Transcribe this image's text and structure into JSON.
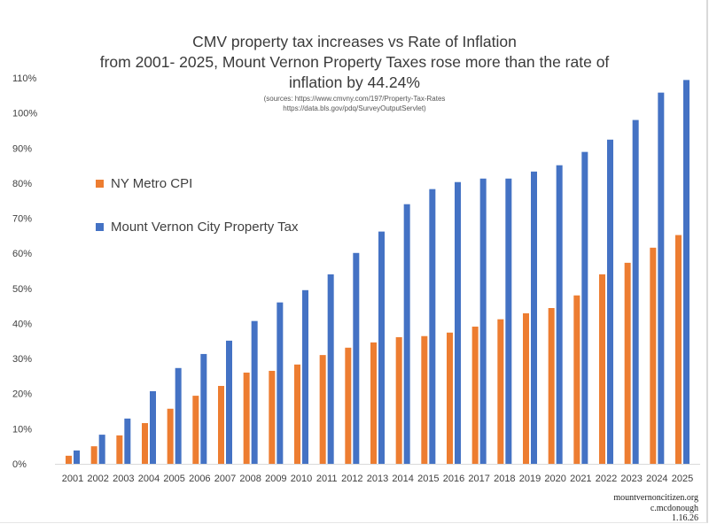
{
  "chart_data": {
    "type": "bar",
    "title": [
      "CMV property tax increases vs Rate of Inflation",
      "from 2001- 2025, Mount Vernon Property Taxes rose more than the rate of",
      "inflation by 44.24%"
    ],
    "subtitle": [
      "(sources: https://www.cmvny.com/197/Property-Tax-Rates",
      "https://data.bls.gov/pdq/SurveyOutputServlet)"
    ],
    "categories": [
      "2001",
      "2002",
      "2003",
      "2004",
      "2005",
      "2006",
      "2007",
      "2008",
      "2009",
      "2010",
      "2011",
      "2012",
      "2013",
      "2014",
      "2015",
      "2016",
      "2017",
      "2018",
      "2019",
      "2020",
      "2021",
      "2022",
      "2023",
      "2024",
      "2025"
    ],
    "series": [
      {
        "name": "NY Metro CPI",
        "color": "#ED7D31",
        "values": [
          2.3,
          5.0,
          8.1,
          11.6,
          15.7,
          19.4,
          22.2,
          26.0,
          26.5,
          28.3,
          31.0,
          33.1,
          34.6,
          36.1,
          36.4,
          37.4,
          39.1,
          41.2,
          42.9,
          44.4,
          48.0,
          54.0,
          57.3,
          61.6,
          65.2
        ]
      },
      {
        "name": "Mount Vernon City Property Tax",
        "color": "#4472C4",
        "values": [
          3.8,
          8.3,
          12.9,
          20.7,
          27.3,
          31.3,
          35.1,
          40.7,
          46.0,
          49.5,
          54.0,
          60.1,
          66.2,
          74.0,
          78.3,
          80.3,
          81.3,
          81.3,
          83.3,
          85.1,
          88.9,
          92.4,
          98.0,
          105.8,
          109.4
        ]
      }
    ],
    "yticks": [
      "0%",
      "10%",
      "20%",
      "30%",
      "40%",
      "50%",
      "60%",
      "70%",
      "80%",
      "90%",
      "100%",
      "110%"
    ],
    "ylim": [
      0,
      110
    ],
    "yunit": "%",
    "grid": false,
    "legend": "left"
  },
  "credit": [
    "mountvernoncitizen.org",
    "c.mcdonough",
    "1.16.26"
  ]
}
